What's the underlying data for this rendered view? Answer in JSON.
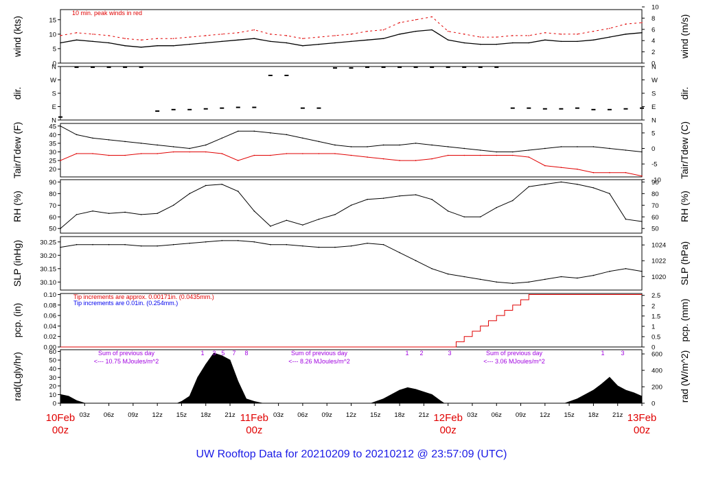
{
  "footer": "UW Rooftop Data for 20210209  to  20210212 @ 23:57:09  (UTC)",
  "colors": {
    "red": "#e00000",
    "blue": "#1a1ae6",
    "purple": "#a000e0"
  },
  "x_axis": {
    "hour_ticks": [
      "03z",
      "06z",
      "09z",
      "12z",
      "15z",
      "18z",
      "21z"
    ],
    "day_labels": [
      {
        "day": "10Feb",
        "hour": "00z"
      },
      {
        "day": "11Feb",
        "hour": "00z"
      },
      {
        "day": "12Feb",
        "hour": "00z"
      },
      {
        "day": "13Feb",
        "hour": "00z"
      }
    ]
  },
  "chart_data": [
    {
      "type": "line",
      "id": "wind",
      "left_label": "wind (kts)",
      "right_label": "wind (m/s)",
      "annotation": "10 min. peak winds in red",
      "left_ticks": [
        "0",
        "5",
        "10",
        "15"
      ],
      "right_ticks": [
        "0",
        "2",
        "4",
        "6",
        "8",
        "10"
      ],
      "ylim": [
        0,
        18.5
      ],
      "x": [
        0,
        2,
        4,
        6,
        8,
        10,
        12,
        14,
        16,
        18,
        20,
        22,
        24,
        26,
        28,
        30,
        32,
        34,
        36,
        38,
        40,
        42,
        44,
        46,
        48,
        50,
        52,
        54,
        56,
        58,
        60,
        62,
        64,
        66,
        68,
        70,
        72
      ],
      "series": [
        {
          "values": [
            7,
            8,
            7.5,
            7,
            6,
            5.5,
            6,
            6,
            6.5,
            7,
            7.5,
            8,
            8.5,
            7.5,
            7,
            6,
            6.5,
            7,
            7.5,
            8,
            8.5,
            10,
            11,
            11.5,
            8,
            7,
            6.5,
            6.5,
            7,
            7,
            8,
            7.5,
            7.5,
            8,
            9,
            10,
            10.5
          ]
        },
        {
          "values": [
            9.5,
            10.5,
            10,
            9.5,
            8.5,
            8,
            8.5,
            8.5,
            9,
            9.5,
            10,
            10.5,
            11.5,
            10,
            9.5,
            8.5,
            9,
            9.5,
            10,
            11,
            11.5,
            14,
            15,
            16,
            11,
            10,
            9,
            9,
            9.5,
            9.5,
            10.5,
            10,
            10,
            11,
            12,
            13.5,
            14
          ]
        }
      ]
    },
    {
      "type": "scatter",
      "id": "dir",
      "left_label": "dir.",
      "right_label": "dir.",
      "left_ticks": [
        "N",
        "E",
        "S",
        "W",
        "N"
      ],
      "right_ticks": [
        "N",
        "E",
        "S",
        "W",
        "N"
      ],
      "ylim": [
        0,
        360
      ],
      "x": [
        0,
        2,
        4,
        6,
        8,
        10,
        12,
        14,
        16,
        18,
        20,
        22,
        24,
        26,
        28,
        30,
        32,
        34,
        36,
        38,
        40,
        42,
        44,
        46,
        48,
        50,
        52,
        54,
        56,
        58,
        60,
        62,
        64,
        66,
        68,
        70,
        72
      ],
      "series": [
        {
          "values": [
            20,
            355,
            355,
            355,
            355,
            355,
            60,
            70,
            70,
            75,
            80,
            85,
            85,
            300,
            300,
            80,
            80,
            350,
            350,
            355,
            355,
            355,
            355,
            355,
            355,
            355,
            355,
            355,
            80,
            80,
            75,
            75,
            80,
            70,
            70,
            75,
            80
          ]
        }
      ]
    },
    {
      "type": "line",
      "id": "temp",
      "left_label": "Tair/Tdew (F)",
      "right_label": "Tair/Tdew (C)",
      "left_ticks": [
        "20",
        "25",
        "30",
        "35",
        "40",
        "45"
      ],
      "right_ticks": [
        "-10",
        "-5",
        "0",
        "5"
      ],
      "ylim": [
        15.5,
        46.5
      ],
      "x": [
        0,
        2,
        4,
        6,
        8,
        10,
        12,
        14,
        16,
        18,
        20,
        22,
        24,
        26,
        28,
        30,
        32,
        34,
        36,
        38,
        40,
        42,
        44,
        46,
        48,
        50,
        52,
        54,
        56,
        58,
        60,
        62,
        64,
        66,
        68,
        70,
        72
      ],
      "series": [
        {
          "name": "Tair",
          "values": [
            45,
            40,
            38,
            37,
            36,
            35,
            34,
            33,
            32,
            34,
            38,
            42,
            42,
            41,
            40,
            38,
            36,
            34,
            33,
            33,
            34,
            34,
            35,
            34,
            33,
            32,
            31,
            30,
            30,
            31,
            32,
            33,
            33,
            33,
            32,
            31,
            30
          ]
        },
        {
          "name": "Tdew",
          "values": [
            25,
            29,
            29,
            28,
            28,
            29,
            29,
            30,
            30,
            30,
            29,
            25,
            28,
            28,
            29,
            29,
            29,
            29,
            28,
            27,
            26,
            25,
            25,
            26,
            28,
            28,
            28,
            28,
            28,
            27,
            22,
            21,
            20,
            18,
            18,
            18,
            16
          ]
        }
      ]
    },
    {
      "type": "line",
      "id": "rh",
      "left_label": "RH (%)",
      "right_label": "RH (%)",
      "left_ticks": [
        "50",
        "60",
        "70",
        "80",
        "90"
      ],
      "right_ticks": [
        "50",
        "60",
        "70",
        "80",
        "90"
      ],
      "ylim": [
        46,
        92
      ],
      "x": [
        0,
        2,
        4,
        6,
        8,
        10,
        12,
        14,
        16,
        18,
        20,
        22,
        24,
        26,
        28,
        30,
        32,
        34,
        36,
        38,
        40,
        42,
        44,
        46,
        48,
        50,
        52,
        54,
        56,
        58,
        60,
        62,
        64,
        66,
        68,
        70,
        72
      ],
      "series": [
        {
          "values": [
            50,
            62,
            65,
            63,
            64,
            62,
            63,
            70,
            80,
            87,
            88,
            82,
            65,
            52,
            57,
            53,
            58,
            62,
            70,
            75,
            76,
            78,
            79,
            75,
            65,
            60,
            60,
            68,
            74,
            86,
            88,
            90,
            88,
            85,
            80,
            58,
            56
          ]
        }
      ]
    },
    {
      "type": "line",
      "id": "slp",
      "left_label": "SLP (inHg)",
      "right_label": "SLP (hPa)",
      "left_ticks": [
        "30.10",
        "30.15",
        "30.20",
        "30.25"
      ],
      "right_ticks": [
        "1020",
        "1022",
        "1024"
      ],
      "ylim": [
        30.07,
        30.27
      ],
      "x": [
        0,
        2,
        4,
        6,
        8,
        10,
        12,
        14,
        16,
        18,
        20,
        22,
        24,
        26,
        28,
        30,
        32,
        34,
        36,
        38,
        40,
        42,
        44,
        46,
        48,
        50,
        52,
        54,
        56,
        58,
        60,
        62,
        64,
        66,
        68,
        70,
        72
      ],
      "series": [
        {
          "values": [
            30.23,
            30.24,
            30.24,
            30.24,
            30.24,
            30.235,
            30.235,
            30.24,
            30.245,
            30.25,
            30.255,
            30.255,
            30.25,
            30.24,
            30.24,
            30.235,
            30.23,
            30.23,
            30.235,
            30.245,
            30.24,
            30.21,
            30.18,
            30.15,
            30.13,
            30.12,
            30.11,
            30.1,
            30.095,
            30.1,
            30.11,
            30.12,
            30.115,
            30.125,
            30.14,
            30.15,
            30.14
          ]
        }
      ]
    },
    {
      "type": "line",
      "id": "pcp",
      "left_label": "pcp. (in)",
      "right_label": "pcp. (mm)",
      "annotation_red": "Tip increments are approx. 0.00171in. (0.0435mm.)",
      "annotation_blue": "Tip increments are 0.01in. (0.254mm.)",
      "left_ticks": [
        "0.00",
        "0.02",
        "0.04",
        "0.06",
        "0.08",
        "0.10"
      ],
      "right_ticks": [
        "0",
        "0.5",
        "1",
        "1.5",
        "2",
        "2.5"
      ],
      "ylim": [
        0,
        0.102
      ],
      "x": [
        0,
        48.2,
        49.0,
        50.0,
        51.0,
        52.0,
        53.0,
        54.0,
        55.0,
        56.0,
        57.0,
        58.0,
        72
      ],
      "series": [
        {
          "values": [
            0.0,
            0.0,
            0.01,
            0.02,
            0.03,
            0.04,
            0.05,
            0.06,
            0.07,
            0.08,
            0.09,
            0.1,
            0.1
          ]
        }
      ]
    },
    {
      "type": "area",
      "id": "rad",
      "left_label": "rad(Lgly/hr)",
      "right_label": "rad (W/m^2)",
      "left_ticks": [
        "0",
        "10",
        "20",
        "30",
        "40",
        "50",
        "60"
      ],
      "right_ticks": [
        "0",
        "200",
        "400",
        "600"
      ],
      "ylim": [
        0,
        62
      ],
      "annotations": [
        {
          "line1": "Sum of previous day",
          "line2": "<--- 10.75 MJoules/m^2"
        },
        {
          "line1": "Sum of previous day",
          "line2": "<--- 8.26 MJoules/m^2"
        },
        {
          "line1": "Sum of previous day",
          "line2": "<--- 3.06 MJoules/m^2"
        }
      ],
      "peak_labels": [
        "1",
        "3",
        "5",
        "7",
        "8",
        "1",
        "2",
        "3",
        "1",
        "3"
      ],
      "x": [
        0,
        1,
        2,
        3,
        14.5,
        15,
        16,
        17,
        18,
        19,
        20,
        21,
        22,
        23,
        24,
        25,
        38.5,
        40,
        42,
        43,
        44,
        46,
        47,
        47.5,
        62.5,
        64,
        66,
        67,
        68,
        69,
        70,
        71,
        72
      ],
      "series": [
        {
          "values": [
            10,
            8,
            3,
            0,
            0,
            2,
            8,
            30,
            45,
            58,
            55,
            50,
            25,
            5,
            2,
            0,
            0,
            5,
            15,
            18,
            16,
            10,
            3,
            0,
            0,
            5,
            15,
            22,
            30,
            20,
            15,
            12,
            8
          ]
        }
      ]
    }
  ]
}
